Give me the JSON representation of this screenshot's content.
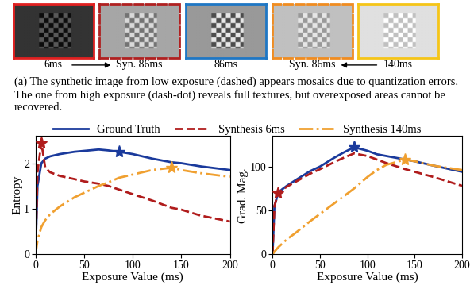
{
  "images": [
    {
      "caption": "6ms",
      "color": "#e02020",
      "line_style": "solid"
    },
    {
      "caption": "Syn. 86ms",
      "color": "#b02020",
      "line_style": "dashed"
    },
    {
      "caption": "86ms",
      "color": "#1f77c4",
      "line_style": "solid"
    },
    {
      "caption": "Syn. 86ms",
      "color": "#f08c20",
      "line_style": "dashed"
    },
    {
      "caption": "140ms",
      "color": "#f5c518",
      "line_style": "solid"
    }
  ],
  "caption": "(a) The synthetic image from low exposure (dashed) appears mosaics due to quantization errors. The one from high exposure (dash-dot) reveals full textures, but overexposed areas cannot be recovered.",
  "chart_data": [
    {
      "type": "line",
      "x_label": "Exposure Value (ms)",
      "y_label": "Entropy",
      "legend": "upper center",
      "x": [
        0,
        2,
        6,
        10,
        15,
        25,
        40,
        50,
        65,
        75,
        86,
        100,
        110,
        120,
        140,
        150,
        170,
        200
      ],
      "xlim": [
        0,
        200
      ],
      "xticks": [
        0,
        50,
        100,
        150,
        200
      ],
      "ylim": [
        0,
        2.6
      ],
      "yticks": [
        0,
        1,
        2
      ],
      "series": [
        {
          "name": "Ground Truth",
          "color": "#1a3a9c",
          "line_style": "solid",
          "marker": "star",
          "best_x": 86,
          "best_y": 2.25,
          "values": [
            0,
            1.5,
            2.0,
            2.1,
            2.15,
            2.2,
            2.25,
            2.27,
            2.3,
            2.28,
            2.25,
            2.2,
            2.15,
            2.1,
            2.02,
            2.0,
            1.93,
            1.85
          ]
        },
        {
          "name": "Synthesis 6ms",
          "color": "#b01c1c",
          "line_style": "dashed",
          "marker": "star",
          "best_x": 6,
          "best_y": 2.45,
          "values": [
            0,
            1.8,
            2.45,
            1.9,
            1.8,
            1.72,
            1.65,
            1.6,
            1.55,
            1.5,
            1.42,
            1.32,
            1.25,
            1.18,
            1.02,
            0.98,
            0.85,
            0.72
          ]
        },
        {
          "name": "Synthesis 140ms",
          "color": "#f0a030",
          "line_style": "dash-dot",
          "marker": "star",
          "best_x": 140,
          "best_y": 1.9,
          "values": [
            0,
            0.3,
            0.6,
            0.75,
            0.88,
            1.05,
            1.25,
            1.35,
            1.5,
            1.58,
            1.68,
            1.75,
            1.8,
            1.85,
            1.9,
            1.85,
            1.78,
            1.7
          ]
        }
      ]
    },
    {
      "type": "line",
      "x_label": "Exposure Value (ms)",
      "y_label": "Grad. Mag.",
      "x": [
        0,
        2,
        6,
        10,
        15,
        25,
        40,
        50,
        65,
        75,
        86,
        100,
        110,
        120,
        140,
        150,
        170,
        200
      ],
      "xlim": [
        0,
        200
      ],
      "xticks": [
        0,
        50,
        100,
        150,
        200
      ],
      "ylim": [
        0,
        135
      ],
      "yticks": [
        0,
        50,
        100
      ],
      "series": [
        {
          "name": "Ground Truth",
          "color": "#1a3a9c",
          "line_style": "solid",
          "marker": "star",
          "best_x": 86,
          "best_y": 122,
          "values": [
            0,
            55,
            70,
            74,
            78,
            85,
            95,
            100,
            110,
            116,
            122,
            118,
            114,
            112,
            108,
            106,
            101,
            94
          ]
        },
        {
          "name": "Synthesis 6ms",
          "color": "#b01c1c",
          "line_style": "dashed",
          "marker": "star",
          "best_x": 6,
          "best_y": 70,
          "values": [
            0,
            55,
            70,
            73,
            77,
            83,
            92,
            97,
            105,
            110,
            115,
            112,
            108,
            104,
            97,
            94,
            88,
            78
          ]
        },
        {
          "name": "Synthesis 140ms",
          "color": "#f0a030",
          "line_style": "dash-dot",
          "marker": "star",
          "best_x": 140,
          "best_y": 108,
          "values": [
            0,
            3,
            8,
            12,
            17,
            25,
            38,
            46,
            58,
            66,
            75,
            88,
            96,
            102,
            108,
            106,
            101,
            96
          ]
        }
      ]
    }
  ]
}
